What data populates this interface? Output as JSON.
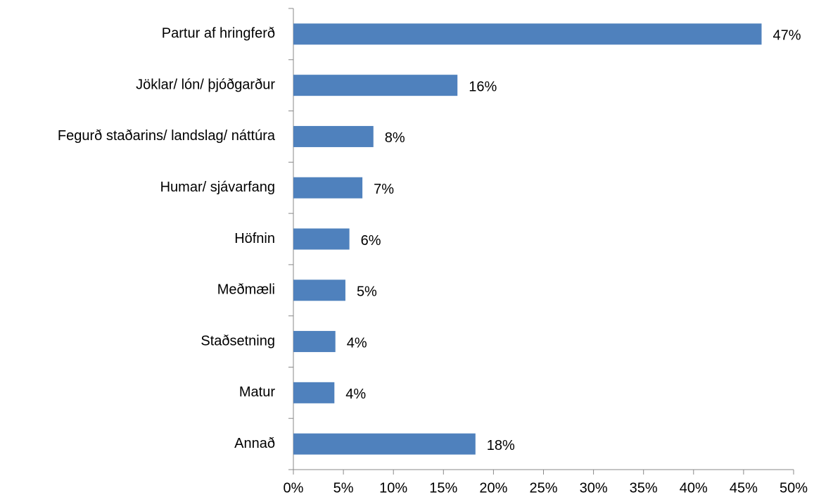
{
  "chart_data": {
    "type": "bar",
    "orientation": "horizontal",
    "categories": [
      "Partur af hringferð",
      "Jöklar/ lón/ þjóðgarður",
      "Fegurð staðarins/ landslag/ náttúra",
      "Humar/ sjávarfang",
      "Höfnin",
      "Meðmæli",
      "Staðsetning",
      "Matur",
      "Annað"
    ],
    "values": [
      46.8,
      16.4,
      8.0,
      6.9,
      5.6,
      5.2,
      4.2,
      4.1,
      18.2
    ],
    "value_labels": [
      "47%",
      "16%",
      "8%",
      "7%",
      "6%",
      "5%",
      "4%",
      "4%",
      "18%"
    ],
    "color": "#4f81bd",
    "xlim": [
      0,
      50
    ],
    "xticks": [
      {
        "value": 0,
        "label": "0%"
      },
      {
        "value": 5,
        "label": "5%"
      },
      {
        "value": 10,
        "label": "10%"
      },
      {
        "value": 15,
        "label": "15%"
      },
      {
        "value": 20,
        "label": "20%"
      },
      {
        "value": 25,
        "label": "25%"
      },
      {
        "value": 30,
        "label": "30%"
      },
      {
        "value": 35,
        "label": "35%"
      },
      {
        "value": 40,
        "label": "40%"
      },
      {
        "value": 45,
        "label": "45%"
      },
      {
        "value": 50,
        "label": "50%"
      }
    ],
    "grid": false
  }
}
